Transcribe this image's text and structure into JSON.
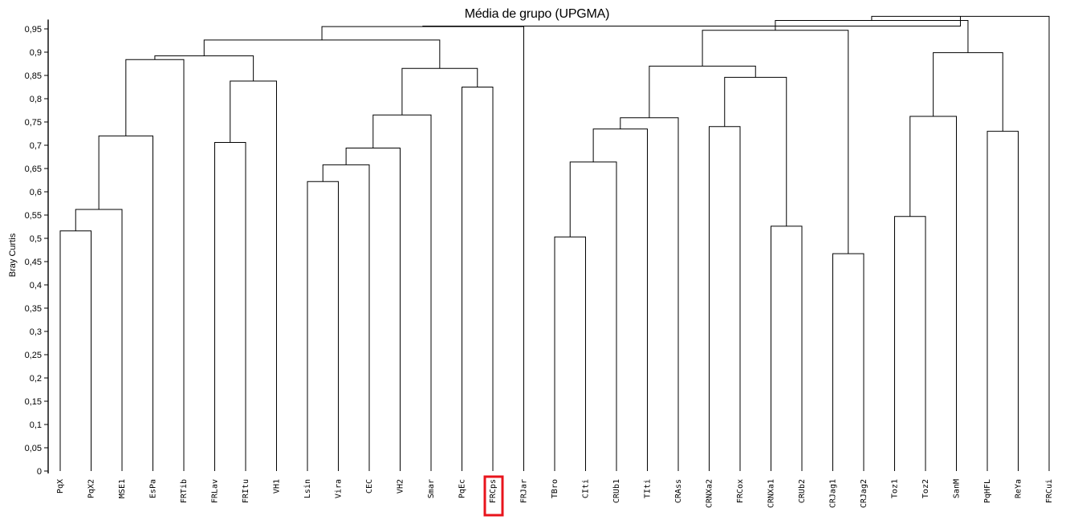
{
  "chart_data": {
    "type": "dendrogram",
    "title": "Média de grupo (UPGMA)",
    "ylabel": "Bray Curtis",
    "ylim": [
      0,
      0.97
    ],
    "yticks": [
      "0",
      "0,05",
      "0,1",
      "0,15",
      "0,2",
      "0,25",
      "0,3",
      "0,35",
      "0,4",
      "0,45",
      "0,5",
      "0,55",
      "0,6",
      "0,65",
      "0,7",
      "0,75",
      "0,8",
      "0,85",
      "0,9",
      "0,95"
    ],
    "leaves": [
      "PqX",
      "PqX2",
      "MSE1",
      "EsPa",
      "FRTib",
      "FRLav",
      "FRItu",
      "VH1",
      "Lsin",
      "Vira",
      "CEC",
      "VH2",
      "Smar",
      "PqEc",
      "FRCps",
      "FRJar",
      "TBro",
      "CIti",
      "CRUb1",
      "TIti",
      "CRAss",
      "CRNXa2",
      "FRCox",
      "CRNXa1",
      "CRUb2",
      "CRJag1",
      "CRJag2",
      "Toz1",
      "Toz2",
      "SanM",
      "PqHFL",
      "ReYa",
      "FRCui"
    ],
    "highlighted_leaf": "FRCps",
    "highlight_color": "#e8141c",
    "merges": [
      {
        "left": "PqX",
        "right": "PqX2",
        "height": 0.516
      },
      {
        "left": "c1",
        "right": "MSE1",
        "height": 0.562
      },
      {
        "left": "c2",
        "right": "EsPa",
        "height": 0.72
      },
      {
        "left": "c3",
        "right": "FRTib",
        "height": 0.884
      },
      {
        "left": "FRLav",
        "right": "FRItu",
        "height": 0.706
      },
      {
        "left": "c5",
        "right": "VH1",
        "height": 0.838
      },
      {
        "left": "c4",
        "right": "c6",
        "height": 0.892
      },
      {
        "left": "Lsin",
        "right": "Vira",
        "height": 0.622
      },
      {
        "left": "c8",
        "right": "CEC",
        "height": 0.658
      },
      {
        "left": "c9",
        "right": "VH2",
        "height": 0.694
      },
      {
        "left": "c10",
        "right": "Smar",
        "height": 0.765
      },
      {
        "left": "PqEc",
        "right": "FRCps",
        "height": 0.825
      },
      {
        "left": "c11",
        "right": "c12",
        "height": 0.865
      },
      {
        "left": "c7",
        "right": "c13",
        "height": 0.926
      },
      {
        "left": "c14",
        "right": "FRJar",
        "height": 0.955
      },
      {
        "left": "TBro",
        "right": "CIti",
        "height": 0.503
      },
      {
        "left": "c16",
        "right": "CRUb1",
        "height": 0.664
      },
      {
        "left": "c17",
        "right": "TIti",
        "height": 0.735
      },
      {
        "left": "c18",
        "right": "CRAss",
        "height": 0.759
      },
      {
        "left": "CRNXa2",
        "right": "FRCox",
        "height": 0.74
      },
      {
        "left": "CRNXa1",
        "right": "CRUb2",
        "height": 0.526
      },
      {
        "left": "c20",
        "right": "c21",
        "height": 0.846
      },
      {
        "left": "c19",
        "right": "c22",
        "height": 0.87
      },
      {
        "left": "CRJag1",
        "right": "CRJag2",
        "height": 0.467
      },
      {
        "left": "c23",
        "right": "c24",
        "height": 0.947
      },
      {
        "left": "Toz1",
        "right": "Toz2",
        "height": 0.547
      },
      {
        "left": "c26",
        "right": "SanM",
        "height": 0.762
      },
      {
        "left": "PqHFL",
        "right": "ReYa",
        "height": 0.73
      },
      {
        "left": "c27",
        "right": "c28",
        "height": 0.899
      },
      {
        "left": "c25",
        "right": "c29",
        "height": 0.968
      },
      {
        "left": "c30",
        "right": "FRCui",
        "height": 0.977
      },
      {
        "left": "c15",
        "right": "c31",
        "height": 0.956
      }
    ],
    "grid": false,
    "line_color": "#000000"
  }
}
